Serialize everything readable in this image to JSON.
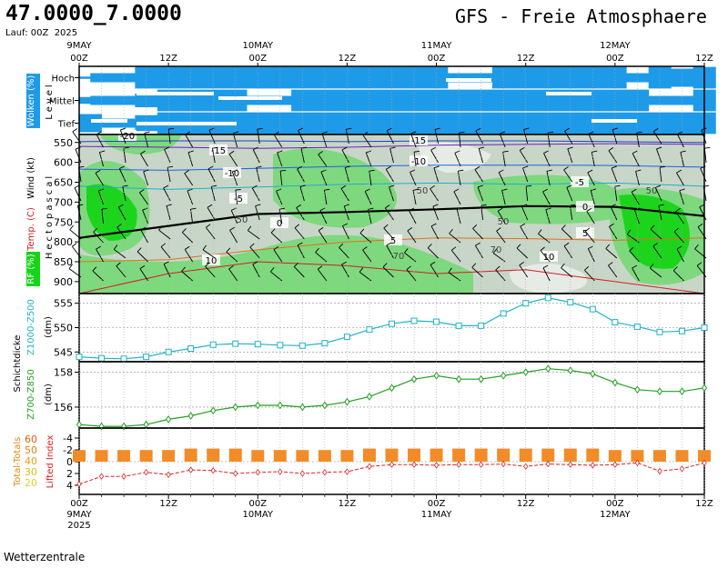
{
  "header": {
    "coords": "47.0000_7.0000",
    "title": "GFS - Freie Atmosphaere",
    "run": "Lauf: 00Z",
    "year": "2025"
  },
  "footer": "Wetterzentrale",
  "colors": {
    "cloud": "#1e9be8",
    "rh_high": "#18d418",
    "rh_mid": "#7ad87a",
    "rh_low": "#c8d6c8",
    "thickness1": "#21b2c4",
    "thickness2": "#22a022",
    "tt_bar": "#f28c28",
    "lifted": "#dd2020"
  },
  "time_axis": {
    "top_labels": [
      {
        "t": 0,
        "line1": "9MAY",
        "line2": "00Z"
      },
      {
        "t": 12,
        "line1": "",
        "line2": "12Z"
      },
      {
        "t": 24,
        "line1": "10MAY",
        "line2": "00Z"
      },
      {
        "t": 36,
        "line1": "",
        "line2": "12Z"
      },
      {
        "t": 48,
        "line1": "11MAY",
        "line2": "00Z"
      },
      {
        "t": 60,
        "line1": "",
        "line2": "12Z"
      },
      {
        "t": 72,
        "line1": "12MAY",
        "line2": "00Z"
      },
      {
        "t": 84,
        "line1": "",
        "line2": "12Z"
      }
    ],
    "bottom_labels": [
      {
        "t": 0,
        "line1": "00Z",
        "line2": "9MAY",
        "line3": "2025"
      },
      {
        "t": 12,
        "line1": "12Z",
        "line2": "",
        "line3": ""
      },
      {
        "t": 24,
        "line1": "00Z",
        "line2": "10MAY",
        "line3": ""
      },
      {
        "t": 36,
        "line1": "12Z",
        "line2": "",
        "line3": ""
      },
      {
        "t": 48,
        "line1": "00Z",
        "line2": "11MAY",
        "line3": ""
      },
      {
        "t": 60,
        "line1": "12Z",
        "line2": "",
        "line3": ""
      },
      {
        "t": 72,
        "line1": "00Z",
        "line2": "12MAY",
        "line3": ""
      },
      {
        "t": 84,
        "line1": "12Z",
        "line2": "",
        "line3": ""
      }
    ]
  },
  "chart_data": [
    {
      "type": "heatmap",
      "panel": "clouds",
      "ylabel_main": "Wolken (%)",
      "ylabel_side": "Level",
      "levels": [
        "Hoch",
        "Mittel",
        "Tief"
      ],
      "x": [
        0,
        3,
        6,
        9,
        12,
        15,
        18,
        21,
        24,
        27,
        30,
        33,
        36,
        39,
        42,
        45,
        48,
        51,
        54,
        57,
        60,
        63,
        66,
        69,
        72,
        75,
        78,
        81,
        84
      ],
      "coverage": {
        "Hoch": [
          10,
          40,
          40,
          95,
          95,
          95,
          95,
          95,
          95,
          95,
          95,
          95,
          95,
          95,
          95,
          95,
          95,
          40,
          40,
          95,
          95,
          95,
          95,
          95,
          95,
          40,
          95,
          80,
          95
        ],
        "Mittel": [
          30,
          40,
          40,
          60,
          95,
          95,
          95,
          95,
          40,
          40,
          95,
          95,
          95,
          95,
          95,
          95,
          95,
          95,
          95,
          95,
          95,
          95,
          95,
          95,
          95,
          95,
          40,
          40,
          95
        ],
        "Tief": [
          80,
          40,
          40,
          70,
          95,
          95,
          95,
          95,
          95,
          95,
          95,
          95,
          95,
          95,
          95,
          95,
          95,
          95,
          95,
          95,
          95,
          95,
          95,
          95,
          95,
          95,
          95,
          95,
          95
        ]
      }
    },
    {
      "type": "heatmap",
      "panel": "atmosphere",
      "ylabel_main": "Hectopascal",
      "ylabel_wind": "Wind (kt)",
      "ylabel_temp": "Temp. (C)",
      "ylabel_rh": "RF (%)",
      "y_ticks": [
        550,
        600,
        650,
        700,
        750,
        800,
        850,
        900
      ],
      "ylim": [
        530,
        930
      ],
      "isotherm_labels": [
        "-20",
        "-15",
        "-10",
        "-5",
        "0",
        "5",
        "10",
        "-15",
        "-10",
        "-5",
        "0",
        "5",
        "10"
      ],
      "rh_labels": [
        "50",
        "50",
        "50",
        "50",
        "70",
        "70"
      ],
      "isotherms": [
        {
          "value": -20,
          "color": "#2040c0",
          "x": [
            0,
            12,
            24,
            36,
            48,
            60,
            72,
            84
          ],
          "p": [
            548,
            546,
            546,
            548,
            546,
            546,
            548,
            550
          ]
        },
        {
          "value": -15,
          "color": "#7020c0",
          "x": [
            0,
            12,
            24,
            36,
            48,
            60,
            72,
            84
          ],
          "p": [
            560,
            562,
            565,
            562,
            557,
            555,
            553,
            555
          ]
        },
        {
          "value": -10,
          "color": "#2060e0",
          "x": [
            0,
            12,
            24,
            36,
            48,
            60,
            72,
            84
          ],
          "p": [
            617,
            620,
            615,
            610,
            607,
            607,
            608,
            612
          ]
        },
        {
          "value": -5,
          "color": "#20b0c0",
          "x": [
            0,
            12,
            24,
            36,
            48,
            60,
            72,
            84
          ],
          "p": [
            660,
            668,
            662,
            655,
            652,
            655,
            652,
            660
          ]
        },
        {
          "value": 0,
          "color": "#000000",
          "x": [
            0,
            12,
            24,
            36,
            48,
            60,
            72,
            84
          ],
          "p": [
            790,
            760,
            730,
            725,
            718,
            710,
            712,
            735
          ]
        },
        {
          "value": 5,
          "color": "#e07020",
          "x": [
            0,
            12,
            24,
            36,
            48,
            60,
            72,
            84
          ],
          "p": [
            850,
            845,
            820,
            800,
            790,
            792,
            796,
            790
          ]
        },
        {
          "value": 10,
          "color": "#d02020",
          "x": [
            0,
            12,
            24,
            36,
            48,
            60,
            72,
            84
          ],
          "p": [
            930,
            880,
            850,
            860,
            880,
            870,
            900,
            930
          ]
        }
      ]
    },
    {
      "type": "line",
      "panel": "thickness_500",
      "ylabel_main": "Schichtdicke",
      "ylabel": "Z1000-Z500",
      "yunit": "(dm)",
      "y_ticks": [
        545,
        550,
        555
      ],
      "ylim": [
        543,
        557
      ],
      "x": [
        0,
        3,
        6,
        9,
        12,
        15,
        18,
        21,
        24,
        27,
        30,
        33,
        36,
        39,
        42,
        45,
        48,
        51,
        54,
        57,
        60,
        63,
        66,
        69,
        72,
        75,
        78,
        81,
        84
      ],
      "values": [
        544,
        543.7,
        543.6,
        544,
        545,
        545.7,
        546.5,
        546.7,
        546.6,
        546.4,
        546.3,
        546.8,
        548.1,
        549.6,
        550.8,
        551.4,
        551.2,
        550.4,
        550.4,
        552.9,
        555,
        556.1,
        555.2,
        553.8,
        551.1,
        550.2,
        549.1,
        549.3,
        550
      ],
      "series": [
        {
          "name": "Z1000-Z500",
          "color": "#21b2c4"
        }
      ]
    },
    {
      "type": "line",
      "panel": "thickness_850",
      "ylabel": "Z700-Z850",
      "yunit": "(dm)",
      "y_ticks": [
        156,
        158
      ],
      "ylim": [
        154.8,
        158.6
      ],
      "x": [
        0,
        3,
        6,
        9,
        12,
        15,
        18,
        21,
        24,
        27,
        30,
        33,
        36,
        39,
        42,
        45,
        48,
        51,
        54,
        57,
        60,
        63,
        66,
        69,
        72,
        75,
        78,
        81,
        84
      ],
      "values": [
        155.0,
        154.9,
        154.9,
        155.0,
        155.3,
        155.5,
        155.8,
        156.0,
        156.1,
        156.1,
        156.0,
        156.1,
        156.3,
        156.6,
        157.1,
        157.6,
        157.8,
        157.6,
        157.6,
        157.8,
        158.0,
        158.2,
        158.1,
        157.9,
        157.4,
        157.0,
        156.9,
        156.9,
        157.1
      ],
      "series": [
        {
          "name": "Z700-Z850",
          "color": "#22a022"
        }
      ]
    },
    {
      "type": "bar",
      "panel": "stability",
      "ylabel_tt": "Total-Totals",
      "ylabel_li": "Lifted Index",
      "tt_ticks": [
        "60",
        "50",
        "40",
        "30",
        "20"
      ],
      "li_ticks": [
        "-4",
        "-2",
        "0",
        "2",
        "4"
      ],
      "x": [
        0,
        3,
        6,
        9,
        12,
        15,
        18,
        21,
        24,
        27,
        30,
        33,
        36,
        39,
        42,
        45,
        48,
        51,
        54,
        57,
        60,
        63,
        66,
        69,
        72,
        75,
        78,
        81,
        84
      ],
      "total_totals": [
        48,
        48,
        48,
        48,
        48,
        49,
        49,
        49,
        48,
        48,
        48,
        48,
        48,
        49,
        49,
        49,
        49,
        49,
        49,
        49,
        49,
        49,
        49,
        49,
        48,
        48,
        48,
        48,
        48
      ],
      "lifted_index": [
        3.8,
        2.5,
        2.5,
        1.8,
        2.2,
        1.4,
        1.5,
        2.0,
        1.8,
        1.7,
        2.0,
        1.8,
        1.7,
        0.8,
        0.5,
        0.5,
        0.6,
        0.5,
        0.5,
        0.4,
        0.8,
        0.4,
        0.5,
        0.6,
        0.5,
        0.2,
        1.6,
        1.2,
        0.2
      ],
      "series": [
        {
          "name": "Total-Totals",
          "color": "#f28c28"
        },
        {
          "name": "Lifted Index",
          "color": "#dd2020"
        }
      ]
    }
  ]
}
